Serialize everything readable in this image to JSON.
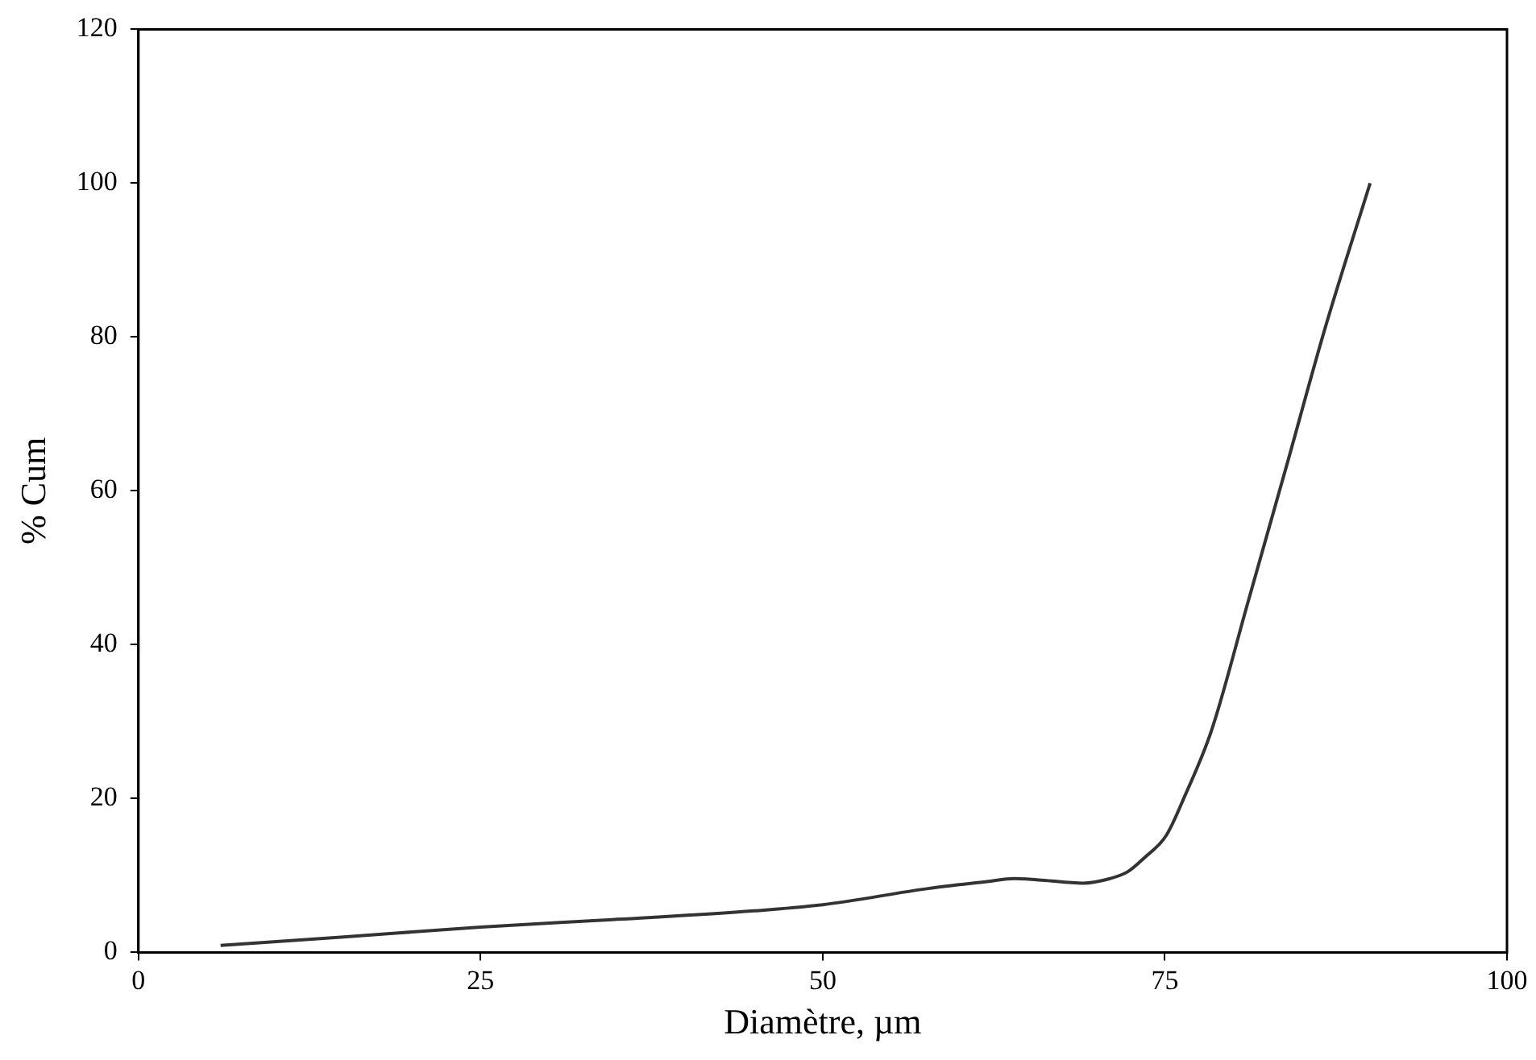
{
  "chart_data": {
    "type": "line",
    "xlabel": "Diamètre, µm",
    "ylabel": "% Cum",
    "xlim": [
      0,
      100
    ],
    "xticks": [
      0,
      25,
      50,
      75,
      100
    ],
    "ylim": [
      0,
      120
    ],
    "yticks": [
      0,
      20,
      40,
      60,
      80,
      100,
      120
    ],
    "grid": false,
    "legend": false,
    "marker": "none",
    "line_style": "solid",
    "series": [
      {
        "color": "#333333",
        "x": [
          6,
          15,
          25,
          35,
          45,
          50,
          57.7,
          62,
          64,
          66,
          69,
          71,
          72.3,
          73.5,
          75.1,
          76.5,
          78.4,
          81.1,
          83.9,
          86.7,
          90
        ],
        "values": [
          0.9,
          2,
          3.3,
          4.3,
          5.4,
          6.2,
          8.3,
          9.2,
          9.6,
          9.4,
          9,
          9.6,
          10.5,
          12.3,
          15.2,
          20.5,
          28.8,
          45.7,
          63.3,
          81.1,
          100
        ]
      }
    ]
  }
}
